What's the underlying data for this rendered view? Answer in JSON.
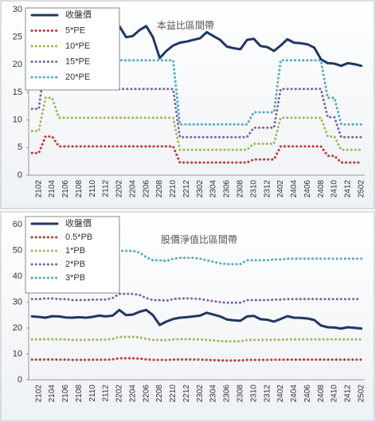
{
  "chart_data": [
    {
      "type": "line",
      "title": "本益比區間帶",
      "legend": "upper left",
      "categories": [
        null,
        "2102",
        null,
        "2104",
        null,
        "2106",
        null,
        "2108",
        null,
        "2110",
        null,
        "2112",
        null,
        "2202",
        null,
        "2204",
        null,
        "2206",
        null,
        "2208",
        null,
        "2210",
        null,
        "2212",
        null,
        "2302",
        null,
        "2304",
        null,
        "2306",
        null,
        "2308",
        null,
        "2310",
        null,
        "2312",
        null,
        "2402",
        null,
        "2404",
        null,
        "2406",
        null,
        "2408",
        null,
        "2410",
        null,
        "2412",
        null,
        "2502"
      ],
      "ylim": [
        0,
        30
      ],
      "yticks": [
        0,
        5,
        10,
        15,
        20,
        25,
        30
      ],
      "series": [
        {
          "name": "收盤價",
          "color": "#1f3864",
          "style": "solid",
          "values": [
            24.5,
            24.3,
            24.0,
            24.6,
            24.5,
            24.1,
            24.0,
            24.2,
            24.0,
            24.3,
            24.8,
            24.5,
            24.8,
            27.0,
            25.0,
            25.2,
            26.3,
            27.0,
            25.0,
            21.2,
            22.5,
            23.5,
            24.0,
            24.2,
            24.5,
            24.8,
            25.9,
            25.2,
            24.5,
            23.3,
            23.0,
            22.8,
            24.5,
            24.7,
            23.4,
            23.2,
            22.5,
            23.5,
            24.6,
            24.0,
            23.9,
            23.7,
            23.1,
            21.0,
            20.3,
            20.2,
            19.8,
            20.3,
            20.1,
            19.8
          ]
        },
        {
          "name": "5*PE",
          "color": "#c0392b",
          "style": "dotted",
          "values": [
            4,
            4,
            7,
            7,
            5.2,
            5.2,
            5.2,
            5.2,
            5.2,
            5.2,
            5.2,
            5.2,
            5.2,
            5.2,
            5.2,
            5.2,
            5.2,
            5.2,
            5.2,
            5.2,
            5.2,
            5.2,
            2.3,
            2.3,
            2.3,
            2.3,
            2.3,
            2.3,
            2.3,
            2.3,
            2.3,
            2.3,
            2.3,
            2.85,
            2.85,
            2.85,
            2.85,
            5.2,
            5.2,
            5.2,
            5.2,
            5.2,
            5.2,
            5.2,
            3.5,
            3.5,
            2.3,
            2.3,
            2.3,
            2.3
          ]
        },
        {
          "name": "10*PE",
          "color": "#9bbb59",
          "style": "dotted",
          "values": [
            8,
            8,
            14,
            14,
            10.4,
            10.4,
            10.4,
            10.4,
            10.4,
            10.4,
            10.4,
            10.4,
            10.4,
            10.4,
            10.4,
            10.4,
            10.4,
            10.4,
            10.4,
            10.4,
            10.4,
            10.4,
            4.6,
            4.6,
            4.6,
            4.6,
            4.6,
            4.6,
            4.6,
            4.6,
            4.6,
            4.6,
            4.6,
            5.7,
            5.7,
            5.7,
            5.7,
            10.4,
            10.4,
            10.4,
            10.4,
            10.4,
            10.4,
            10.4,
            7,
            7,
            4.6,
            4.6,
            4.6,
            4.6
          ]
        },
        {
          "name": "15*PE",
          "color": "#8064a2",
          "style": "dotted",
          "values": [
            12,
            12,
            21,
            21,
            15.6,
            15.6,
            15.6,
            15.6,
            15.6,
            15.6,
            15.6,
            15.6,
            15.6,
            15.6,
            15.6,
            15.6,
            15.6,
            15.6,
            15.6,
            15.6,
            15.6,
            15.6,
            6.9,
            6.9,
            6.9,
            6.9,
            6.9,
            6.9,
            6.9,
            6.9,
            6.9,
            6.9,
            6.9,
            8.6,
            8.6,
            8.6,
            8.6,
            15.6,
            15.6,
            15.6,
            15.6,
            15.6,
            15.6,
            15.6,
            10.5,
            10.5,
            6.9,
            6.9,
            6.9,
            6.9
          ]
        },
        {
          "name": "20*PE",
          "color": "#4bacc6",
          "style": "dotted",
          "values": [
            16,
            16,
            28,
            28,
            20.8,
            20.8,
            20.8,
            20.8,
            20.8,
            20.8,
            20.8,
            20.8,
            20.8,
            20.8,
            20.8,
            20.8,
            20.8,
            20.8,
            20.8,
            20.8,
            20.8,
            20.8,
            9.2,
            9.2,
            9.2,
            9.2,
            9.2,
            9.2,
            9.2,
            9.2,
            9.2,
            9.2,
            9.2,
            11.4,
            11.4,
            11.4,
            11.4,
            20.8,
            20.8,
            20.8,
            20.8,
            20.8,
            20.8,
            20.8,
            14,
            14,
            9.2,
            9.2,
            9.2,
            9.2
          ]
        }
      ]
    },
    {
      "type": "line",
      "title": "股價淨值比區間帶",
      "legend": "upper left",
      "categories": [
        null,
        "2102",
        null,
        "2104",
        null,
        "2106",
        null,
        "2108",
        null,
        "2110",
        null,
        "2112",
        null,
        "2202",
        null,
        "2204",
        null,
        "2206",
        null,
        "2208",
        null,
        "2210",
        null,
        "2212",
        null,
        "2302",
        null,
        "2304",
        null,
        "2306",
        null,
        "2308",
        null,
        "2310",
        null,
        "2312",
        null,
        "2402",
        null,
        "2404",
        null,
        "2406",
        null,
        "2408",
        null,
        "2410",
        null,
        "2412",
        null,
        "2502"
      ],
      "ylim": [
        0,
        60
      ],
      "yticks": [
        0,
        10,
        20,
        30,
        40,
        50,
        60
      ],
      "series": [
        {
          "name": "收盤價",
          "color": "#1f3864",
          "style": "solid",
          "values": [
            24.5,
            24.3,
            24.0,
            24.6,
            24.5,
            24.1,
            24.0,
            24.2,
            24.0,
            24.3,
            24.8,
            24.5,
            24.8,
            27.0,
            25.0,
            25.2,
            26.3,
            27.0,
            25.0,
            21.2,
            22.5,
            23.5,
            24.0,
            24.2,
            24.5,
            24.8,
            25.9,
            25.2,
            24.5,
            23.3,
            23.0,
            22.8,
            24.5,
            24.7,
            23.4,
            23.2,
            22.5,
            23.5,
            24.6,
            24.0,
            23.9,
            23.7,
            23.1,
            21.0,
            20.3,
            20.2,
            19.8,
            20.3,
            20.1,
            19.8
          ]
        },
        {
          "name": "0.5*PB",
          "color": "#c0392b",
          "style": "dotted",
          "values": [
            7.8,
            7.8,
            7.85,
            7.85,
            7.8,
            7.8,
            7.7,
            7.7,
            7.7,
            7.75,
            7.75,
            7.75,
            7.9,
            8.3,
            8.3,
            8.3,
            8.2,
            7.9,
            7.7,
            7.7,
            7.65,
            7.8,
            7.85,
            7.85,
            7.85,
            7.8,
            7.7,
            7.6,
            7.5,
            7.45,
            7.45,
            7.45,
            7.7,
            7.7,
            7.7,
            7.7,
            7.75,
            7.75,
            7.8,
            7.8,
            7.8,
            7.8,
            7.8,
            7.8,
            7.8,
            7.8,
            7.8,
            7.8,
            7.8,
            7.8
          ]
        },
        {
          "name": "1*PB",
          "color": "#9bbb59",
          "style": "dotted",
          "values": [
            15.6,
            15.6,
            15.7,
            15.7,
            15.6,
            15.6,
            15.4,
            15.4,
            15.4,
            15.5,
            15.5,
            15.5,
            15.8,
            16.6,
            16.6,
            16.6,
            16.4,
            15.8,
            15.4,
            15.4,
            15.3,
            15.6,
            15.7,
            15.7,
            15.7,
            15.6,
            15.4,
            15.2,
            15.0,
            14.9,
            14.9,
            14.9,
            15.4,
            15.4,
            15.4,
            15.4,
            15.5,
            15.5,
            15.6,
            15.6,
            15.6,
            15.6,
            15.6,
            15.6,
            15.6,
            15.6,
            15.6,
            15.6,
            15.6,
            15.6
          ]
        },
        {
          "name": "2*PB",
          "color": "#8064a2",
          "style": "dotted",
          "values": [
            31.2,
            31.2,
            31.4,
            31.4,
            31.2,
            31.2,
            30.8,
            30.8,
            30.8,
            31,
            31,
            31,
            31.6,
            33.2,
            33.2,
            33.2,
            32.8,
            31.6,
            30.8,
            30.8,
            30.6,
            31.2,
            31.4,
            31.4,
            31.4,
            31.2,
            30.8,
            30.4,
            30,
            29.8,
            29.8,
            29.8,
            30.8,
            30.8,
            30.8,
            30.8,
            31,
            31,
            31.2,
            31.2,
            31.2,
            31.2,
            31.2,
            31.2,
            31.2,
            31.2,
            31.2,
            31.2,
            31.2,
            31.2
          ]
        },
        {
          "name": "3*PB",
          "color": "#4bacc6",
          "style": "dotted",
          "values": [
            46.8,
            46.8,
            47.1,
            47.1,
            46.8,
            46.8,
            46.2,
            46.2,
            46.2,
            46.5,
            46.5,
            46.5,
            47.4,
            49.8,
            49.8,
            49.8,
            49.2,
            47.4,
            46.2,
            46.2,
            45.9,
            46.8,
            47.1,
            47.1,
            47.1,
            46.8,
            46.2,
            45.6,
            45,
            44.7,
            44.7,
            44.7,
            46.2,
            46.2,
            46.2,
            46.2,
            46.5,
            46.5,
            46.8,
            46.8,
            46.8,
            46.8,
            46.8,
            46.8,
            46.8,
            46.8,
            46.8,
            46.8,
            46.8,
            46.8
          ]
        }
      ]
    }
  ]
}
